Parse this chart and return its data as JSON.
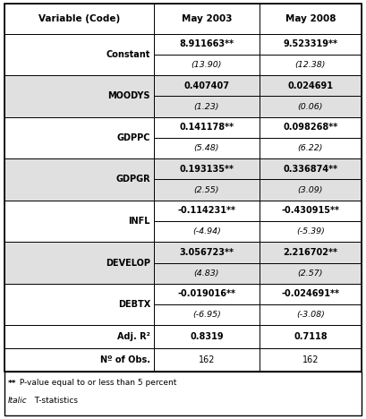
{
  "col_headers": [
    "Variable (Code)",
    "May 2003",
    "May 2008"
  ],
  "rows": [
    {
      "label": "Constant",
      "val1": "8.911663**",
      "tstat1": "(13.90)",
      "val2": "9.523319**",
      "tstat2": "(12.38)",
      "shaded": false
    },
    {
      "label": "MOODYS",
      "val1": "0.407407",
      "tstat1": "(1.23)",
      "val2": "0.024691",
      "tstat2": "(0.06)",
      "shaded": true
    },
    {
      "label": "GDPPC",
      "val1": "0.141178**",
      "tstat1": "(5.48)",
      "val2": "0.098268**",
      "tstat2": "(6.22)",
      "shaded": false
    },
    {
      "label": "GDPGR",
      "val1": "0.193135**",
      "tstat1": "(2.55)",
      "val2": "0.336874**",
      "tstat2": "(3.09)",
      "shaded": true
    },
    {
      "label": "INFL",
      "val1": "-0.114231**",
      "tstat1": "(-4.94)",
      "val2": "-0.430915**",
      "tstat2": "(-5.39)",
      "shaded": false
    },
    {
      "label": "DEVELOP",
      "val1": "3.056723**",
      "tstat1": "(4.83)",
      "val2": "2.216702**",
      "tstat2": "(2.57)",
      "shaded": true
    },
    {
      "label": "DEBTX",
      "val1": "-0.019016**",
      "tstat1": "(-6.95)",
      "val2": "-0.024691**",
      "tstat2": "(-3.08)",
      "shaded": false
    }
  ],
  "adj_r2": [
    "0.8319",
    "0.7118"
  ],
  "n_obs": [
    "162",
    "162"
  ],
  "shaded_color": "#e0e0e0",
  "white_color": "#ffffff",
  "border_color": "#000000"
}
